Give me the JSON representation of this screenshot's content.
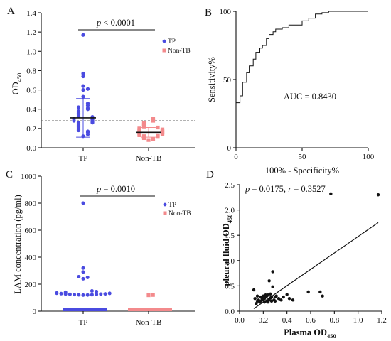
{
  "colors": {
    "tp": "#4A4BE0",
    "nontb": "#F38A8C",
    "ink": "#111111"
  },
  "chart_data": [
    {
      "panel": "A",
      "type": "scatter",
      "title": "",
      "ylabel_main": "OD",
      "ylabel_sub": "450",
      "xlabel": "",
      "ylim": [
        0,
        1.4
      ],
      "yticks": [
        "0.0",
        "0.2",
        "0.4",
        "0.6",
        "0.8",
        "1.0",
        "1.2",
        "1.4"
      ],
      "categories": [
        "TP",
        "Non-TB"
      ],
      "legend": [
        "TP",
        "Non-TB"
      ],
      "legend_position": "top-right",
      "annotation_p_italic": "p",
      "annotation_rest": " < 0.0001",
      "cutoff": 0.28,
      "series": [
        {
          "name": "TP",
          "mean": 0.31,
          "sd": 0.2,
          "values": [
            1.17,
            0.77,
            0.74,
            0.64,
            0.61,
            0.6,
            0.53,
            0.46,
            0.44,
            0.42,
            0.41,
            0.4,
            0.38,
            0.37,
            0.36,
            0.35,
            0.34,
            0.33,
            0.32,
            0.31,
            0.3,
            0.3,
            0.29,
            0.28,
            0.28,
            0.27,
            0.26,
            0.26,
            0.25,
            0.24,
            0.23,
            0.22,
            0.21,
            0.2,
            0.19,
            0.18,
            0.17,
            0.16,
            0.14,
            0.12
          ]
        },
        {
          "name": "Non-TB",
          "mean": 0.16,
          "sd": 0.05,
          "values": [
            0.3,
            0.28,
            0.26,
            0.25,
            0.24,
            0.23,
            0.22,
            0.21,
            0.2,
            0.19,
            0.19,
            0.18,
            0.18,
            0.17,
            0.17,
            0.16,
            0.16,
            0.15,
            0.15,
            0.14,
            0.14,
            0.13,
            0.13,
            0.12,
            0.12,
            0.11,
            0.1,
            0.09,
            0.08
          ]
        }
      ]
    },
    {
      "panel": "B",
      "type": "line",
      "title": "",
      "xlabel": "100% - Specificity%",
      "ylabel": "Sensitivity%",
      "xlim": [
        0,
        100
      ],
      "ylim": [
        0,
        100
      ],
      "xticks": [
        "0",
        "50",
        "100"
      ],
      "yticks": [
        "0",
        "50",
        "100"
      ],
      "annotation": "AUC = 0.8430",
      "x": [
        0,
        0,
        3,
        3,
        5,
        5,
        8,
        8,
        10,
        10,
        13,
        13,
        15,
        15,
        18,
        18,
        20,
        20,
        23,
        23,
        25,
        25,
        28,
        28,
        30,
        30,
        35,
        35,
        40,
        40,
        50,
        50,
        55,
        55,
        60,
        60,
        65,
        65,
        70,
        70,
        100
      ],
      "y": [
        0,
        33,
        33,
        38,
        38,
        48,
        48,
        55,
        55,
        60,
        60,
        65,
        65,
        70,
        70,
        73,
        73,
        75,
        75,
        80,
        80,
        83,
        83,
        85,
        85,
        87,
        87,
        88,
        88,
        90,
        90,
        93,
        93,
        95,
        95,
        98,
        98,
        99,
        99,
        100,
        100
      ]
    },
    {
      "panel": "C",
      "type": "scatter",
      "title": "",
      "ylabel": "LAM concentration (pg/ml)",
      "xlabel": "",
      "ylim": [
        0,
        1000
      ],
      "yticks": [
        "0",
        "200",
        "400",
        "600",
        "800",
        "1000"
      ],
      "categories": [
        "TP",
        "Non-TB"
      ],
      "legend": [
        "TP",
        "Non-TB"
      ],
      "legend_position": "top-right",
      "annotation_p_italic": "p",
      "annotation_rest": " = 0.0010",
      "series": [
        {
          "name": "TP",
          "values": [
            800,
            320,
            290,
            255,
            250,
            240,
            150,
            145,
            140,
            135,
            133,
            132,
            130,
            128,
            127,
            126,
            125,
            124,
            123,
            122,
            121,
            120,
            119
          ]
        },
        {
          "name": "Non-TB",
          "values": [
            120,
            118
          ]
        }
      ]
    },
    {
      "panel": "D",
      "type": "scatter",
      "title": "",
      "xlabel_main": "Plasma OD",
      "xlabel_sub": "450",
      "ylabel_main": "pleural fluid OD",
      "ylabel_sub": "450",
      "xlim": [
        0,
        1.2
      ],
      "ylim": [
        0,
        2.5
      ],
      "xticks": [
        "0.0",
        "0.2",
        "0.4",
        "0.6",
        "0.8",
        "1.0",
        "1.2"
      ],
      "yticks": [
        "0.0",
        "0.5",
        "1.0",
        "1.5",
        "2.0",
        "2.5"
      ],
      "annotation_p_italic": "p",
      "annotation_p_rest": " = 0.0175, ",
      "annotation_r_italic": "r",
      "annotation_r_rest": " = 0.3527",
      "regression": {
        "x": [
          0.12,
          1.17
        ],
        "y": [
          0.05,
          1.75
        ]
      },
      "points": [
        [
          0.12,
          0.42
        ],
        [
          0.13,
          0.25
        ],
        [
          0.14,
          0.15
        ],
        [
          0.15,
          0.2
        ],
        [
          0.15,
          0.3
        ],
        [
          0.16,
          0.22
        ],
        [
          0.17,
          0.18
        ],
        [
          0.18,
          0.28
        ],
        [
          0.18,
          0.2
        ],
        [
          0.19,
          0.25
        ],
        [
          0.2,
          0.3
        ],
        [
          0.2,
          0.22
        ],
        [
          0.21,
          0.18
        ],
        [
          0.21,
          0.25
        ],
        [
          0.22,
          0.32
        ],
        [
          0.22,
          0.28
        ],
        [
          0.23,
          0.2
        ],
        [
          0.23,
          0.3
        ],
        [
          0.24,
          0.18
        ],
        [
          0.24,
          0.32
        ],
        [
          0.25,
          0.6
        ],
        [
          0.25,
          0.22
        ],
        [
          0.26,
          0.26
        ],
        [
          0.26,
          0.34
        ],
        [
          0.27,
          0.2
        ],
        [
          0.27,
          0.28
        ],
        [
          0.28,
          0.78
        ],
        [
          0.28,
          0.48
        ],
        [
          0.29,
          0.22
        ],
        [
          0.3,
          0.2
        ],
        [
          0.3,
          0.28
        ],
        [
          0.31,
          0.3
        ],
        [
          0.33,
          0.25
        ],
        [
          0.35,
          0.22
        ],
        [
          0.37,
          0.28
        ],
        [
          0.4,
          0.33
        ],
        [
          0.42,
          0.25
        ],
        [
          0.45,
          0.22
        ],
        [
          0.58,
          0.38
        ],
        [
          0.68,
          0.38
        ],
        [
          0.7,
          0.3
        ],
        [
          0.77,
          2.32
        ],
        [
          1.17,
          2.3
        ]
      ]
    }
  ]
}
